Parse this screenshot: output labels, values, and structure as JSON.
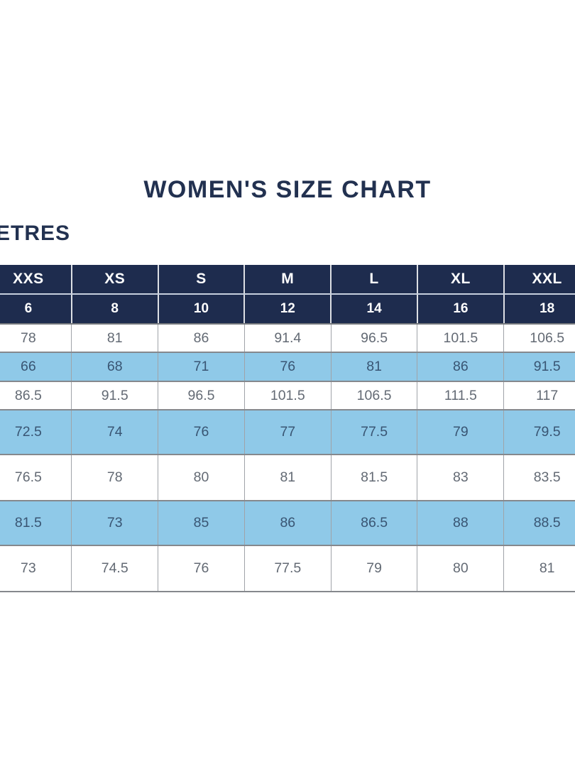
{
  "page": {
    "title": "WOMEN'S SIZE CHART",
    "units_label_partial": "ETRES"
  },
  "colors": {
    "title_color": "#223150",
    "header_bg": "#1e2c4e",
    "header_text": "#ffffff",
    "row_alt_bg": "#8fc9e8",
    "body_text": "#636a74",
    "alt_body_text": "#395573"
  },
  "chart_data": {
    "type": "table",
    "title": "WOMEN'S SIZE CHART",
    "size_labels": [
      "XXS",
      "XS",
      "S",
      "M",
      "L",
      "XL",
      "XXL"
    ],
    "size_numbers": [
      "6",
      "8",
      "10",
      "12",
      "14",
      "16",
      "18"
    ],
    "rows": [
      {
        "highlight": false,
        "values": [
          "78",
          "81",
          "86",
          "91.4",
          "96.5",
          "101.5",
          "106.5"
        ]
      },
      {
        "highlight": true,
        "values": [
          "66",
          "68",
          "71",
          "76",
          "81",
          "86",
          "91.5"
        ]
      },
      {
        "highlight": false,
        "values": [
          "86.5",
          "91.5",
          "96.5",
          "101.5",
          "106.5",
          "111.5",
          "117"
        ]
      },
      {
        "highlight": true,
        "values": [
          "72.5",
          "74",
          "76",
          "77",
          "77.5",
          "79",
          "79.5"
        ]
      },
      {
        "highlight": false,
        "values": [
          "76.5",
          "78",
          "80",
          "81",
          "81.5",
          "83",
          "83.5"
        ]
      },
      {
        "highlight": true,
        "values": [
          "81.5",
          "73",
          "85",
          "86",
          "86.5",
          "88",
          "88.5"
        ]
      },
      {
        "highlight": false,
        "values": [
          "73",
          "74.5",
          "76",
          "77.5",
          "79",
          "80",
          "81"
        ]
      }
    ],
    "layout": {
      "grid": "on",
      "highlight_style": "alternating light blue bands",
      "left_edge_cropped": true,
      "right_edge_cropped": true
    }
  }
}
